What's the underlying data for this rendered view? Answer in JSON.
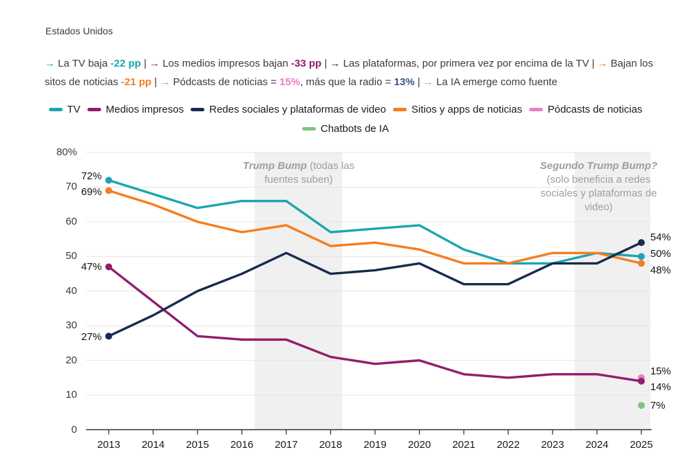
{
  "title": "Estados Unidos",
  "colors": {
    "band": "#f0f0f0",
    "grid": "#e4e4e4",
    "axis": "#333333",
    "separator": "#3b3b3b",
    "annotation": "#9e9e9e",
    "radio_value": "#35567d"
  },
  "subtitle": {
    "tokens": [
      {
        "text": "→ ",
        "color": "#1aa6b1",
        "bold": true
      },
      {
        "text": "La TV baja "
      },
      {
        "text": "-22 pp",
        "color": "#1aa6b1",
        "bold": true
      },
      {
        "text": " | "
      },
      {
        "text": "→ ",
        "color": "#911d6e",
        "bold": true
      },
      {
        "text": "Los medios impresos bajan "
      },
      {
        "text": "-33 pp",
        "color": "#911d6e",
        "bold": true
      },
      {
        "text": " | "
      },
      {
        "text": "→ ",
        "color": "#172b4d",
        "bold": true
      },
      {
        "text": "Las plataformas, por primera vez por encima de la TV"
      },
      {
        "text": " | "
      },
      {
        "text": "→ ",
        "color": "#f57d1f",
        "bold": true
      },
      {
        "text": "Bajan los sitos de noticias "
      },
      {
        "text": "-21 pp",
        "color": "#f57d1f",
        "bold": true
      },
      {
        "text": " | "
      },
      {
        "text": "→ ",
        "color": "#e97fc2",
        "bold": true
      },
      {
        "text": "Pódcasts de noticias = "
      },
      {
        "text": "15%",
        "color": "#e97fc2",
        "bold": true
      },
      {
        "text": ", más que la radio = "
      },
      {
        "text": "13%",
        "color": "#35567d",
        "bold": true
      },
      {
        "text": " | "
      },
      {
        "text": "→ ",
        "color": "#80c47e",
        "bold": true
      },
      {
        "text": "La IA emerge como fuente"
      }
    ]
  },
  "legend": {
    "items": [
      {
        "label": "TV",
        "color": "#1aa6b1"
      },
      {
        "label": "Medios impresos",
        "color": "#911d6e"
      },
      {
        "label": "Redes sociales y plataformas de video",
        "color": "#172b4d"
      },
      {
        "label": "Sitios y apps de noticias",
        "color": "#f57d1f"
      },
      {
        "label": "Pódcasts de noticias",
        "color": "#e97fc2"
      },
      {
        "label": "Chatbots de IA",
        "color": "#80c47e"
      }
    ]
  },
  "annotations": {
    "band1": {
      "bold": "Trump Bump",
      "rest": " (todas las fuentes suben)"
    },
    "band2": {
      "bold": "Segundo Trump Bump?",
      "rest": " (solo beneficia a redes sociales y plataformas de video)"
    }
  },
  "chart_data": {
    "type": "line",
    "title": "Estados Unidos",
    "xlabel": "",
    "ylabel": "",
    "ylim": [
      0,
      80
    ],
    "grid": true,
    "legend_position": "top",
    "categories": [
      "2013",
      "2014",
      "2015",
      "2016",
      "2017",
      "2018",
      "2019",
      "2020",
      "2021",
      "2022",
      "2023",
      "2024",
      "2025"
    ],
    "y_ticks": [
      {
        "label": "80%",
        "value": 80
      },
      {
        "label": "70",
        "value": 70
      },
      {
        "label": "60",
        "value": 60
      },
      {
        "label": "50",
        "value": 50
      },
      {
        "label": "40",
        "value": 40
      },
      {
        "label": "30",
        "value": 30
      },
      {
        "label": "20",
        "value": 20
      },
      {
        "label": "10",
        "value": 10
      },
      {
        "label": "0",
        "value": 0
      }
    ],
    "series": [
      {
        "name": "TV",
        "color": "#1aa6b1",
        "values": [
          72,
          68,
          64,
          66,
          66,
          57,
          58,
          59,
          52,
          48,
          48,
          51,
          50
        ],
        "start_label": "72%",
        "end_label": "50%"
      },
      {
        "name": "Medios impresos",
        "color": "#911d6e",
        "values": [
          47,
          37,
          27,
          26,
          26,
          21,
          19,
          20,
          16,
          15,
          16,
          16,
          14
        ],
        "start_label": "47%",
        "end_label": "14%"
      },
      {
        "name": "Redes sociales y plataformas de video",
        "color": "#172b4d",
        "values": [
          27,
          33,
          40,
          45,
          51,
          45,
          46,
          48,
          42,
          42,
          48,
          48,
          54
        ],
        "start_label": "27%",
        "end_label": "54%"
      },
      {
        "name": "Sitios y apps de noticias",
        "color": "#f57d1f",
        "values": [
          69,
          65,
          60,
          57,
          59,
          53,
          54,
          52,
          48,
          48,
          51,
          51,
          48
        ],
        "start_label": "69%",
        "end_label": "48%"
      },
      {
        "name": "Pódcasts de noticias",
        "color": "#e97fc2",
        "values": [
          null,
          null,
          null,
          null,
          null,
          null,
          null,
          null,
          null,
          null,
          null,
          null,
          15
        ],
        "end_label": "15%"
      },
      {
        "name": "Chatbots de IA",
        "color": "#80c47e",
        "values": [
          null,
          null,
          null,
          null,
          null,
          null,
          null,
          null,
          null,
          null,
          null,
          null,
          7
        ],
        "end_label": "7%"
      }
    ],
    "shaded_zones": [
      {
        "from_year": 2016.29,
        "to_year": 2018.26
      },
      {
        "from_year": 2023.5,
        "to_year": 2025.2
      }
    ]
  }
}
